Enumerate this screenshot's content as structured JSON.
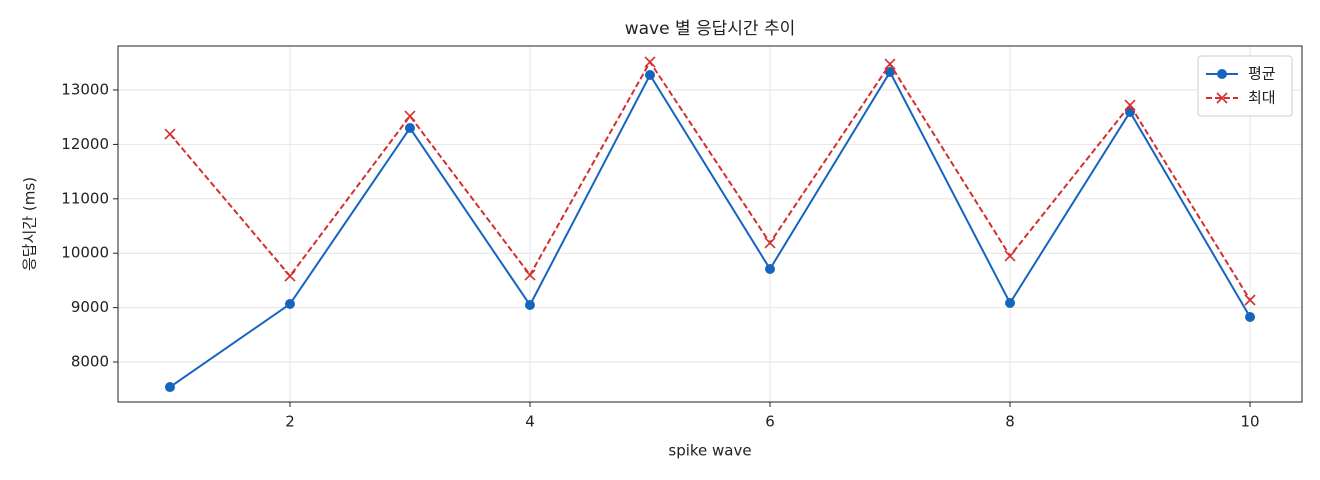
{
  "chart_data": {
    "type": "line",
    "title": "wave 별 응답시간 추이",
    "x_label": "spike wave",
    "y_label": "응답시간 (ms)",
    "x": [
      1,
      2,
      3,
      4,
      5,
      6,
      7,
      8,
      9,
      10
    ],
    "series": [
      {
        "name": "평균",
        "color": "#1565c0",
        "linestyle": "solid",
        "marker": "o",
        "values": [
          7540,
          9066,
          12301,
          9048,
          13276,
          9710,
          13331,
          9085,
          12596,
          8827
        ]
      },
      {
        "name": "최대",
        "color": "#d32f2f",
        "linestyle": "dashed",
        "marker": "x",
        "values": [
          12191,
          9581,
          12522,
          9599,
          13515,
          10188,
          13478,
          9949,
          12724,
          9140
        ]
      }
    ],
    "xlim": [
      0.567,
      10.433
    ],
    "ylim": [
      7265,
      13809
    ],
    "xticks": [
      2,
      4,
      6,
      8,
      10
    ],
    "yticks": [
      8000,
      9000,
      10000,
      11000,
      12000,
      13000
    ],
    "grid": true,
    "legend": "upper right"
  }
}
